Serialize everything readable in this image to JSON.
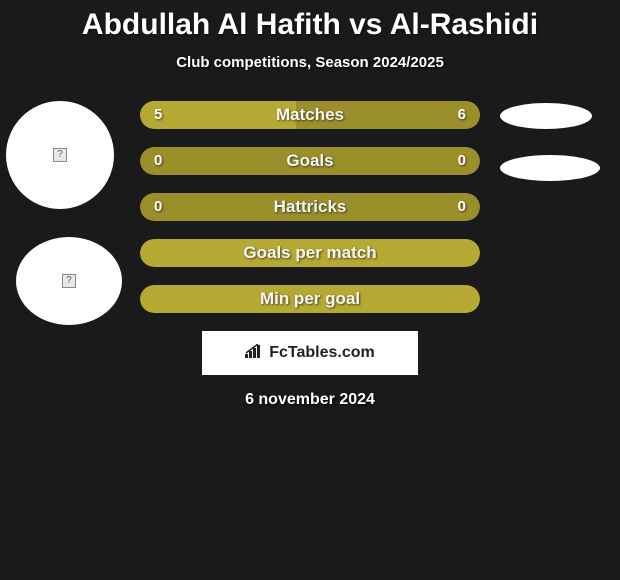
{
  "background_color": "#1a1a1a",
  "title": "Abdullah Al Hafith vs Al-Rashidi",
  "subtitle": "Club competitions, Season 2024/2025",
  "date": "6 november 2024",
  "logo": "FcTables.com",
  "colors": {
    "bar_primary": "#9a8f2a",
    "bar_secondary": "#b5a933",
    "bar_label_text": "#f5f5f5",
    "value_text": "#ffffff",
    "avatar_bg": "#ffffff",
    "ellipse_bg": "#ffffff",
    "logo_bg": "#ffffff",
    "logo_text": "#222222"
  },
  "bars": [
    {
      "label": "Matches",
      "left_value": "5",
      "right_value": "6",
      "left_fill_pct": 46,
      "right_fill_pct": 54,
      "left_color": "#b5a933",
      "right_color": "#9a8f2a"
    },
    {
      "label": "Goals",
      "left_value": "0",
      "right_value": "0",
      "left_fill_pct": 0,
      "right_fill_pct": 0,
      "bg_color": "#9a8f2a"
    },
    {
      "label": "Hattricks",
      "left_value": "0",
      "right_value": "0",
      "left_fill_pct": 0,
      "right_fill_pct": 0,
      "bg_color": "#9a8f2a"
    },
    {
      "label": "Goals per match",
      "left_value": "",
      "right_value": "",
      "left_fill_pct": 0,
      "right_fill_pct": 0,
      "bg_color": "#b5a933"
    },
    {
      "label": "Min per goal",
      "left_value": "",
      "right_value": "",
      "left_fill_pct": 0,
      "right_fill_pct": 0,
      "bg_color": "#b5a933"
    }
  ]
}
